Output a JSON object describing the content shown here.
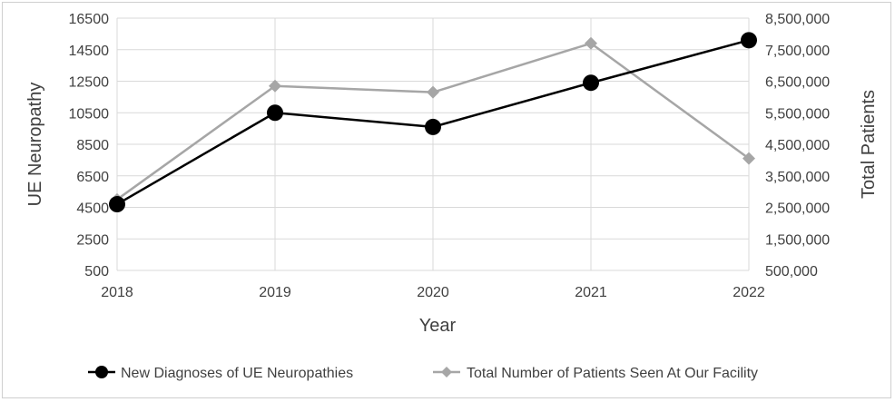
{
  "chart_data": {
    "type": "line",
    "x": [
      "2018",
      "2019",
      "2020",
      "2021",
      "2022"
    ],
    "xlabel": "Year",
    "ylabel_left": "UE Neuropathy",
    "ylabel_right": "Total Patients",
    "left_axis": {
      "min": 500,
      "max": 16500,
      "ticks": [
        500,
        2500,
        4500,
        6500,
        8500,
        10500,
        12500,
        14500,
        16500
      ],
      "tick_labels": [
        "500",
        "2500",
        "4500",
        "6500",
        "8500",
        "10500",
        "12500",
        "14500",
        "16500"
      ]
    },
    "right_axis": {
      "min": 500000,
      "max": 8500000,
      "ticks": [
        500000,
        1500000,
        2500000,
        3500000,
        4500000,
        5500000,
        6500000,
        7500000,
        8500000
      ],
      "tick_labels": [
        "500,000",
        "1,500,000",
        "2,500,000",
        "3,500,000",
        "4,500,000",
        "5,500,000",
        "6,500,000",
        "7,500,000",
        "8,500,000"
      ]
    },
    "series": [
      {
        "name": "New Diagnoses of UE Neuropathies",
        "axis": "left",
        "color": "#000000",
        "marker": "circle",
        "values": [
          4700,
          10500,
          9600,
          12400,
          15100
        ]
      },
      {
        "name": "Total Number of Patients Seen At Our Facility",
        "axis": "right",
        "color": "#a6a6a6",
        "marker": "diamond",
        "values": [
          2750000,
          6350000,
          6150000,
          7700000,
          4050000
        ]
      }
    ],
    "grid": true,
    "legend_position": "bottom"
  }
}
